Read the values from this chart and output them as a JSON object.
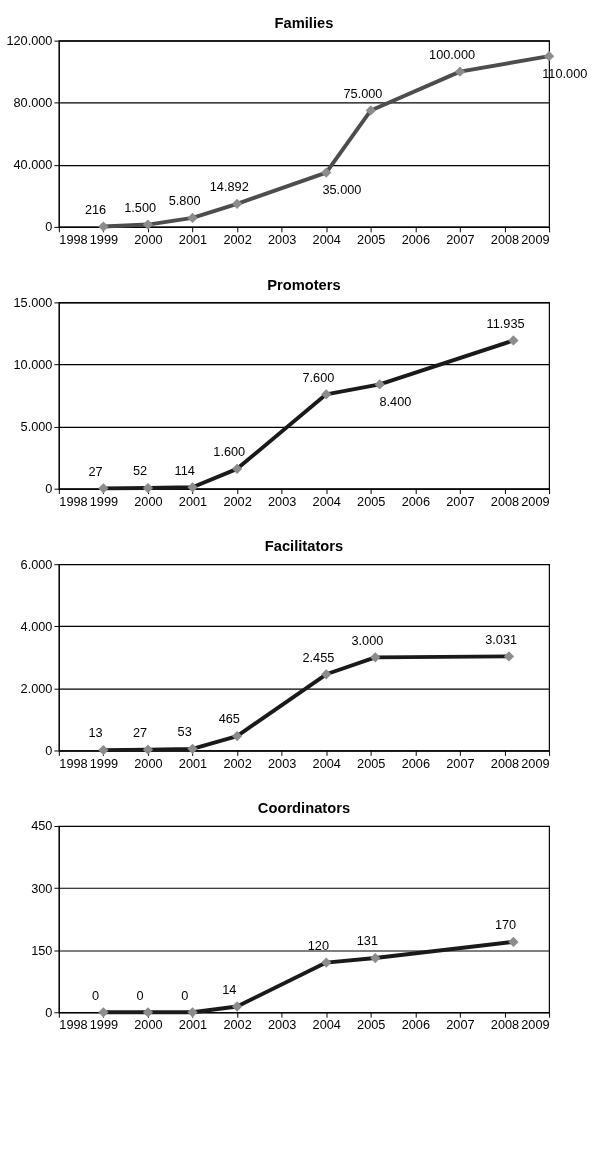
{
  "chart_data": [
    {
      "type": "line",
      "title": "Families",
      "x": [
        1999,
        2000,
        2001,
        2002,
        2004,
        2005,
        2007,
        2009
      ],
      "series": [
        {
          "color": "#4d4d4d",
          "values": [
            216,
            1500,
            5800,
            14892,
            35000,
            75000,
            100000,
            110000
          ],
          "value_labels": [
            "216",
            "1.500",
            "5.800",
            "14.892",
            "35.000",
            "75.000",
            "100.000",
            "110.000"
          ]
        }
      ],
      "xlim": [
        1998,
        2009
      ],
      "xticks": [
        1998,
        1999,
        2000,
        2001,
        2002,
        2003,
        2004,
        2005,
        2006,
        2007,
        2008,
        2009
      ],
      "ylim": [
        0,
        120000
      ],
      "yticks": [
        0,
        {
          "value": 40000,
          "label": "40.000"
        },
        {
          "value": 80000,
          "label": "80.000"
        },
        {
          "value": 120000,
          "label": "120.000"
        }
      ],
      "grid": "y",
      "marker": "diamond",
      "line_style": "solid"
    },
    {
      "type": "line",
      "title": "Promoters",
      "x": [
        1999,
        2000,
        2001,
        2002,
        2004,
        2005.2,
        2008.2
      ],
      "series": [
        {
          "color": "#1a1a1a",
          "values": [
            27,
            52,
            114,
            1600,
            7600,
            8400,
            11935
          ],
          "value_labels": [
            "27",
            "52",
            "114",
            "1.600",
            "7.600",
            "8.400",
            "11.935"
          ]
        }
      ],
      "xlim": [
        1998,
        2009
      ],
      "xticks": [
        1998,
        1999,
        2000,
        2001,
        2002,
        2003,
        2004,
        2005,
        2006,
        2007,
        2008,
        2009
      ],
      "ylim": [
        0,
        15000
      ],
      "yticks": [
        0,
        {
          "value": 5000,
          "label": "5.000"
        },
        {
          "value": 10000,
          "label": "10.000"
        },
        {
          "value": 15000,
          "label": "15.000"
        }
      ],
      "grid": "y",
      "marker": "diamond",
      "line_style": "solid"
    },
    {
      "type": "line",
      "title": "Facilitators",
      "x": [
        1999,
        2000,
        2001,
        2002,
        2004,
        2005.1,
        2008.1
      ],
      "series": [
        {
          "color": "#1a1a1a",
          "values": [
            13,
            27,
            53,
            465,
            2455,
            3000,
            3031
          ],
          "value_labels": [
            "13",
            "27",
            "53",
            "465",
            "2.455",
            "3.000",
            "3.031"
          ]
        }
      ],
      "xlim": [
        1998,
        2009
      ],
      "xticks": [
        1998,
        1999,
        2000,
        2001,
        2002,
        2003,
        2004,
        2005,
        2006,
        2007,
        2008,
        2009
      ],
      "ylim": [
        0,
        6000
      ],
      "yticks": [
        0,
        {
          "value": 2000,
          "label": "2.000"
        },
        {
          "value": 4000,
          "label": "4.000"
        },
        {
          "value": 6000,
          "label": "6.000"
        }
      ],
      "grid": "y",
      "marker": "diamond",
      "line_style": "solid"
    },
    {
      "type": "line",
      "title": "Coordinators",
      "x": [
        1999,
        2000,
        2001,
        2002,
        2004,
        2005.1,
        2008.2
      ],
      "series": [
        {
          "color": "#1a1a1a",
          "values": [
            0,
            0,
            0,
            14,
            120,
            131,
            170
          ],
          "value_labels": [
            "0",
            "0",
            "0",
            "14",
            "120",
            "131",
            "170"
          ]
        }
      ],
      "xlim": [
        1998,
        2009
      ],
      "xticks": [
        1998,
        1999,
        2000,
        2001,
        2002,
        2003,
        2004,
        2005,
        2006,
        2007,
        2008,
        2009
      ],
      "ylim": [
        0,
        450
      ],
      "yticks": [
        0,
        150,
        300,
        450
      ],
      "grid": "y",
      "marker": "diamond",
      "line_style": "solid"
    }
  ]
}
